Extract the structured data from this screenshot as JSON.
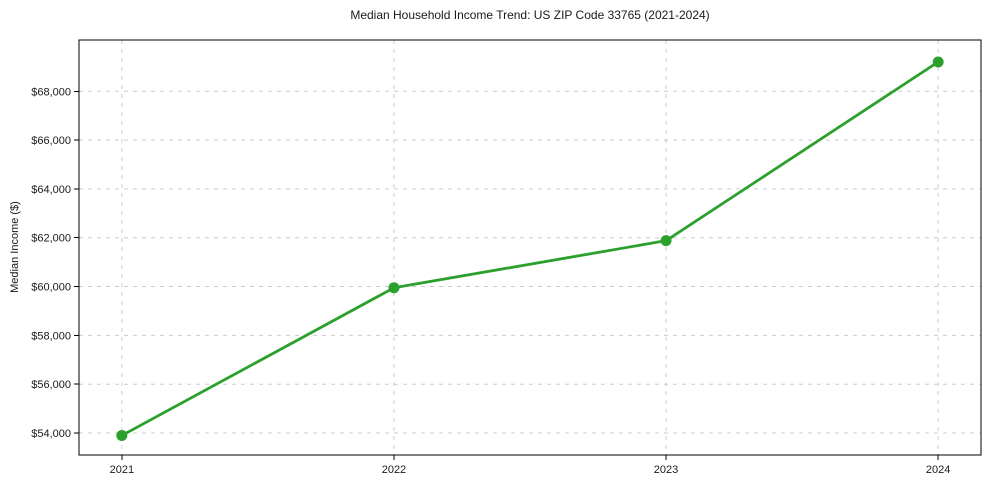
{
  "figure": {
    "background_color": "#ffffff"
  },
  "chart_data": {
    "type": "line",
    "title": "Median Household Income Trend: US ZIP Code 33765 (2021-2024)",
    "xlabel": "",
    "ylabel": "Median Income ($)",
    "categories": [
      "2021",
      "2022",
      "2023",
      "2024"
    ],
    "series": [
      {
        "name": "median-household-income",
        "values": [
          53900,
          59950,
          61880,
          69200
        ],
        "color": "#2ca02c",
        "marker": "circle"
      }
    ],
    "ylim": [
      53100,
      70100
    ],
    "yticks": [
      {
        "value": 54000,
        "label": "$54,000"
      },
      {
        "value": 56000,
        "label": "$56,000"
      },
      {
        "value": 58000,
        "label": "$58,000"
      },
      {
        "value": 60000,
        "label": "$60,000"
      },
      {
        "value": 62000,
        "label": "$62,000"
      },
      {
        "value": 64000,
        "label": "$64,000"
      },
      {
        "value": 66000,
        "label": "$66,000"
      },
      {
        "value": 68000,
        "label": "$68,000"
      }
    ],
    "grid": {
      "show": true,
      "style": "dashed",
      "color": "#cccccc",
      "axes": "both"
    },
    "legend": {
      "show": false
    },
    "axis_color": "#000000",
    "text_color": "#1a1a1a"
  }
}
